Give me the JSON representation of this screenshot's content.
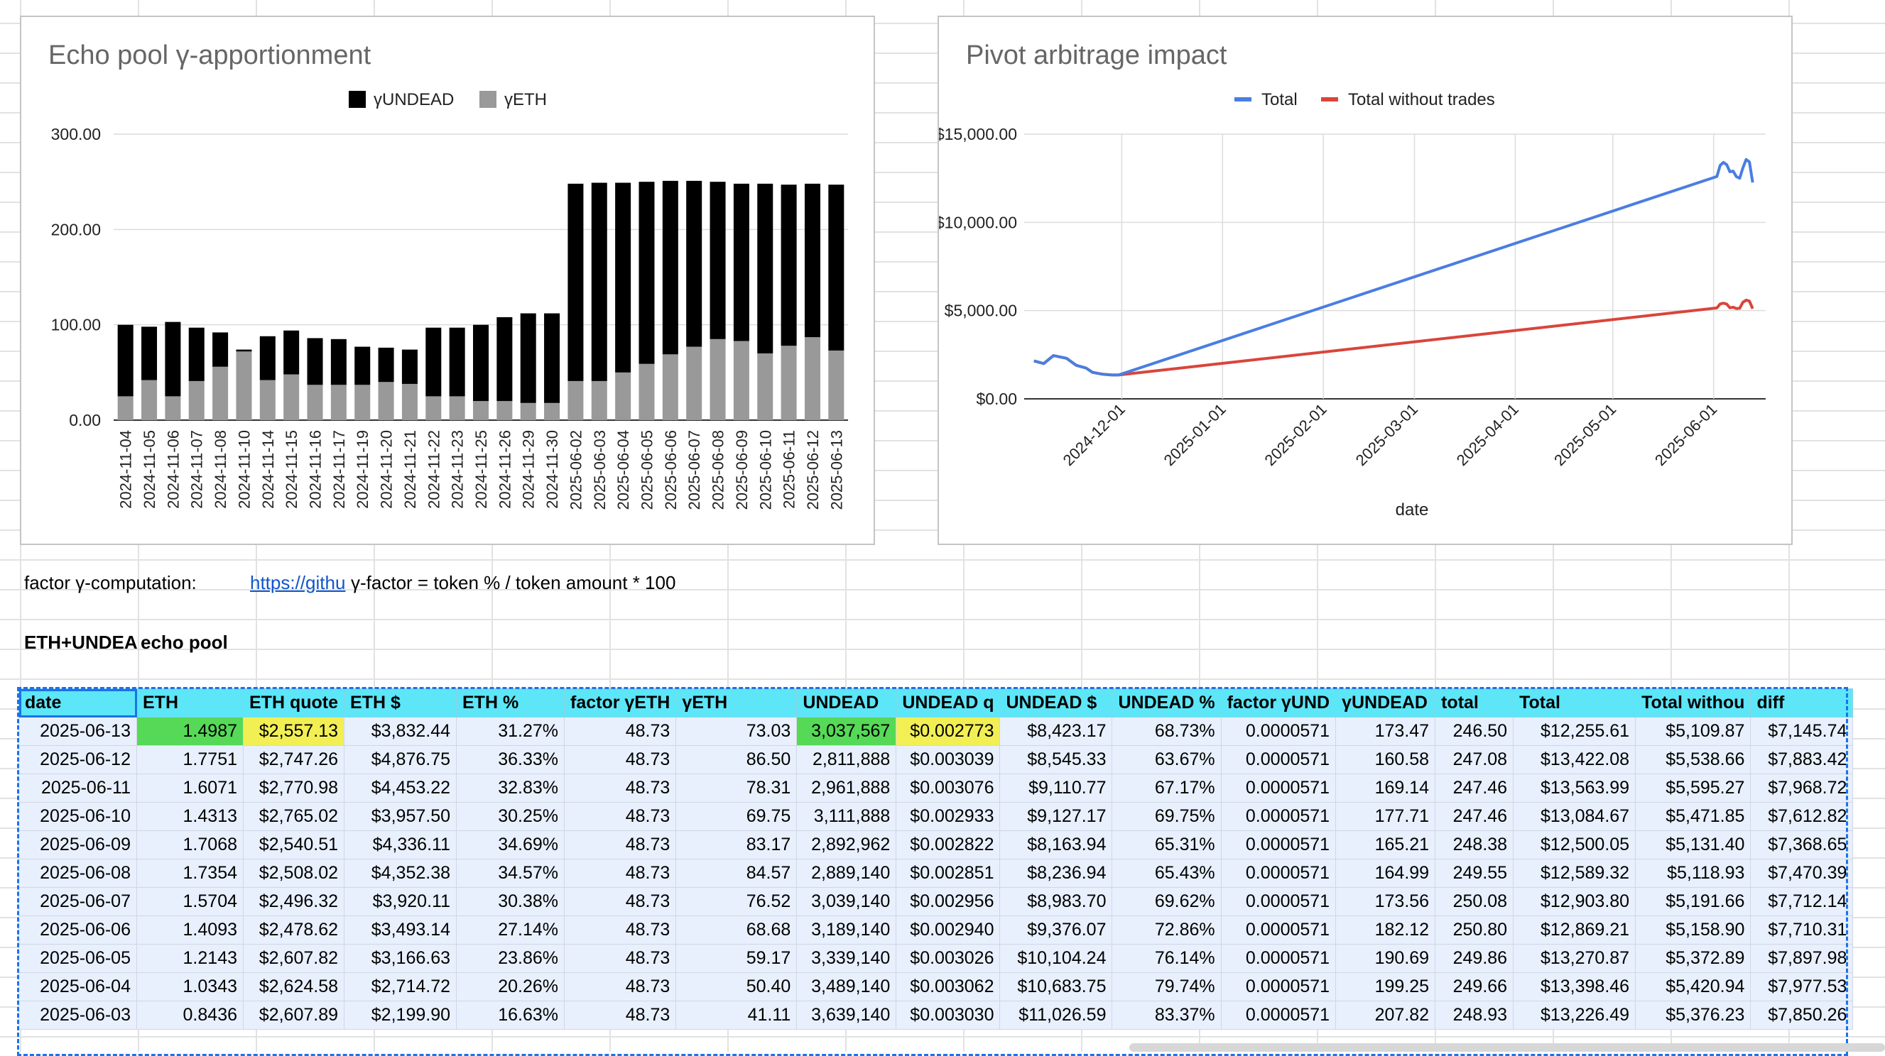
{
  "charts": {
    "gamma": {
      "title": "Echo pool γ-apportionment",
      "legend": [
        "γUNDEAD",
        "γETH"
      ]
    },
    "arb": {
      "title": "Pivot arbitrage impact",
      "legend": [
        "Total",
        "Total without trades"
      ],
      "xlabel": "date"
    }
  },
  "chart_data": [
    {
      "type": "bar",
      "stacked": true,
      "title": "Echo pool γ-apportionment",
      "legend_position": "top",
      "ylim": [
        0,
        300
      ],
      "yticks": [
        "300.00",
        "200.00",
        "100.00",
        "0.00"
      ],
      "categories": [
        "2024-11-04",
        "2024-11-05",
        "2024-11-06",
        "2024-11-07",
        "2024-11-08",
        "2024-11-10",
        "2024-11-14",
        "2024-11-15",
        "2024-11-16",
        "2024-11-17",
        "2024-11-19",
        "2024-11-20",
        "2024-11-21",
        "2024-11-22",
        "2024-11-23",
        "2024-11-25",
        "2024-11-26",
        "2024-11-29",
        "2024-11-30",
        "2025-06-02",
        "2025-06-03",
        "2025-06-04",
        "2025-06-05",
        "2025-06-06",
        "2025-06-07",
        "2025-06-08",
        "2025-06-09",
        "2025-06-10",
        "2025-06-11",
        "2025-06-12",
        "2025-06-13"
      ],
      "series": [
        {
          "name": "γETH",
          "color": "#999999",
          "values": [
            25,
            42,
            25,
            41,
            56,
            72,
            42,
            48,
            37,
            37,
            37,
            40,
            38,
            25,
            25,
            20,
            20,
            18,
            18,
            41,
            41,
            50,
            59,
            69,
            77,
            85,
            83,
            70,
            78,
            87,
            73
          ]
        },
        {
          "name": "γUNDEAD",
          "color": "#000000",
          "values": [
            75,
            56,
            78,
            56,
            36,
            2,
            46,
            46,
            49,
            48,
            40,
            36,
            36,
            72,
            72,
            80,
            88,
            94,
            94,
            207,
            208,
            199,
            191,
            182,
            174,
            165,
            165,
            178,
            169,
            161,
            174
          ]
        }
      ]
    },
    {
      "type": "line",
      "title": "Pivot arbitrage impact",
      "xlabel": "date",
      "legend_position": "top",
      "ylim": [
        0,
        15000
      ],
      "yticks": [
        "$15,000.00",
        "$10,000.00",
        "$5,000.00",
        "$0.00"
      ],
      "xticks": [
        "2024-12-01",
        "2025-01-01",
        "2025-02-01",
        "2025-03-01",
        "2025-04-01",
        "2025-05-01",
        "2025-06-01"
      ],
      "grid": true,
      "series": [
        {
          "name": "Total",
          "color": "#4a7ee0",
          "x": [
            "2024-11-04",
            "2024-11-07",
            "2024-11-10",
            "2024-11-14",
            "2024-11-17",
            "2024-11-20",
            "2024-11-22",
            "2024-11-25",
            "2024-11-28",
            "2024-11-30",
            "2025-06-02",
            "2025-06-03",
            "2025-06-04",
            "2025-06-05",
            "2025-06-06",
            "2025-06-07",
            "2025-06-08",
            "2025-06-09",
            "2025-06-10",
            "2025-06-11",
            "2025-06-12",
            "2025-06-13"
          ],
          "y": [
            2150,
            2000,
            2450,
            2300,
            1900,
            1750,
            1500,
            1400,
            1350,
            1350,
            12600,
            13226,
            13398,
            13271,
            12869,
            12904,
            12589,
            12500,
            13085,
            13564,
            13422,
            12256
          ]
        },
        {
          "name": "Total without trades",
          "color": "#d9453a",
          "x": [
            "2024-11-04",
            "2024-11-07",
            "2024-11-10",
            "2024-11-14",
            "2024-11-17",
            "2024-11-20",
            "2024-11-22",
            "2024-11-25",
            "2024-11-28",
            "2024-11-30",
            "2025-06-02",
            "2025-06-03",
            "2025-06-04",
            "2025-06-05",
            "2025-06-06",
            "2025-06-07",
            "2025-06-08",
            "2025-06-09",
            "2025-06-10",
            "2025-06-11",
            "2025-06-12",
            "2025-06-13"
          ],
          "y": [
            2150,
            2000,
            2450,
            2300,
            1900,
            1750,
            1500,
            1400,
            1350,
            1350,
            5150,
            5376,
            5421,
            5373,
            5159,
            5192,
            5119,
            5131,
            5472,
            5595,
            5539,
            5110
          ]
        }
      ]
    }
  ],
  "notes": {
    "factor_label": "factor γ-computation:",
    "factor_link": "https://githu",
    "factor_formula": "γ-factor = token % / token amount * 100",
    "pool_label": "ETH+UNDEA",
    "pool_name": "echo pool"
  },
  "table": {
    "headers": [
      "date",
      "ETH",
      "ETH quote",
      "ETH $",
      "ETH %",
      "factor γETH",
      "γETH",
      "UNDEAD",
      "UNDEAD q",
      "UNDEAD $",
      "UNDEAD %",
      "factor γUND",
      "γUNDEAD",
      "total",
      "Total",
      "Total withou",
      "diff"
    ],
    "rows": [
      [
        "2025-06-13",
        "1.4987",
        "$2,557.13",
        "$3,832.44",
        "31.27%",
        "48.73",
        "73.03",
        "3,037,567",
        "$0.002773",
        "$8,423.17",
        "68.73%",
        "0.0000571",
        "173.47",
        "246.50",
        "$12,255.61",
        "$5,109.87",
        "$7,145.74"
      ],
      [
        "2025-06-12",
        "1.7751",
        "$2,747.26",
        "$4,876.75",
        "36.33%",
        "48.73",
        "86.50",
        "2,811,888",
        "$0.003039",
        "$8,545.33",
        "63.67%",
        "0.0000571",
        "160.58",
        "247.08",
        "$13,422.08",
        "$5,538.66",
        "$7,883.42"
      ],
      [
        "2025-06-11",
        "1.6071",
        "$2,770.98",
        "$4,453.22",
        "32.83%",
        "48.73",
        "78.31",
        "2,961,888",
        "$0.003076",
        "$9,110.77",
        "67.17%",
        "0.0000571",
        "169.14",
        "247.46",
        "$13,563.99",
        "$5,595.27",
        "$7,968.72"
      ],
      [
        "2025-06-10",
        "1.4313",
        "$2,765.02",
        "$3,957.50",
        "30.25%",
        "48.73",
        "69.75",
        "3,111,888",
        "$0.002933",
        "$9,127.17",
        "69.75%",
        "0.0000571",
        "177.71",
        "247.46",
        "$13,084.67",
        "$5,471.85",
        "$7,612.82"
      ],
      [
        "2025-06-09",
        "1.7068",
        "$2,540.51",
        "$4,336.11",
        "34.69%",
        "48.73",
        "83.17",
        "2,892,962",
        "$0.002822",
        "$8,163.94",
        "65.31%",
        "0.0000571",
        "165.21",
        "248.38",
        "$12,500.05",
        "$5,131.40",
        "$7,368.65"
      ],
      [
        "2025-06-08",
        "1.7354",
        "$2,508.02",
        "$4,352.38",
        "34.57%",
        "48.73",
        "84.57",
        "2,889,140",
        "$0.002851",
        "$8,236.94",
        "65.43%",
        "0.0000571",
        "164.99",
        "249.55",
        "$12,589.32",
        "$5,118.93",
        "$7,470.39"
      ],
      [
        "2025-06-07",
        "1.5704",
        "$2,496.32",
        "$3,920.11",
        "30.38%",
        "48.73",
        "76.52",
        "3,039,140",
        "$0.002956",
        "$8,983.70",
        "69.62%",
        "0.0000571",
        "173.56",
        "250.08",
        "$12,903.80",
        "$5,191.66",
        "$7,712.14"
      ],
      [
        "2025-06-06",
        "1.4093",
        "$2,478.62",
        "$3,493.14",
        "27.14%",
        "48.73",
        "68.68",
        "3,189,140",
        "$0.002940",
        "$9,376.07",
        "72.86%",
        "0.0000571",
        "182.12",
        "250.80",
        "$12,869.21",
        "$5,158.90",
        "$7,710.31"
      ],
      [
        "2025-06-05",
        "1.2143",
        "$2,607.82",
        "$3,166.63",
        "23.86%",
        "48.73",
        "59.17",
        "3,339,140",
        "$0.003026",
        "$10,104.24",
        "76.14%",
        "0.0000571",
        "190.69",
        "249.86",
        "$13,270.87",
        "$5,372.89",
        "$7,897.98"
      ],
      [
        "2025-06-04",
        "1.0343",
        "$2,624.58",
        "$2,714.72",
        "20.26%",
        "48.73",
        "50.40",
        "3,489,140",
        "$0.003062",
        "$10,683.75",
        "79.74%",
        "0.0000571",
        "199.25",
        "249.66",
        "$13,398.46",
        "$5,420.94",
        "$7,977.53"
      ],
      [
        "2025-06-03",
        "0.8436",
        "$2,607.89",
        "$2,199.90",
        "16.63%",
        "48.73",
        "41.11",
        "3,639,140",
        "$0.003030",
        "$11,026.59",
        "83.37%",
        "0.0000571",
        "207.82",
        "248.93",
        "$13,226.49",
        "$5,376.23",
        "$7,850.26"
      ]
    ]
  }
}
